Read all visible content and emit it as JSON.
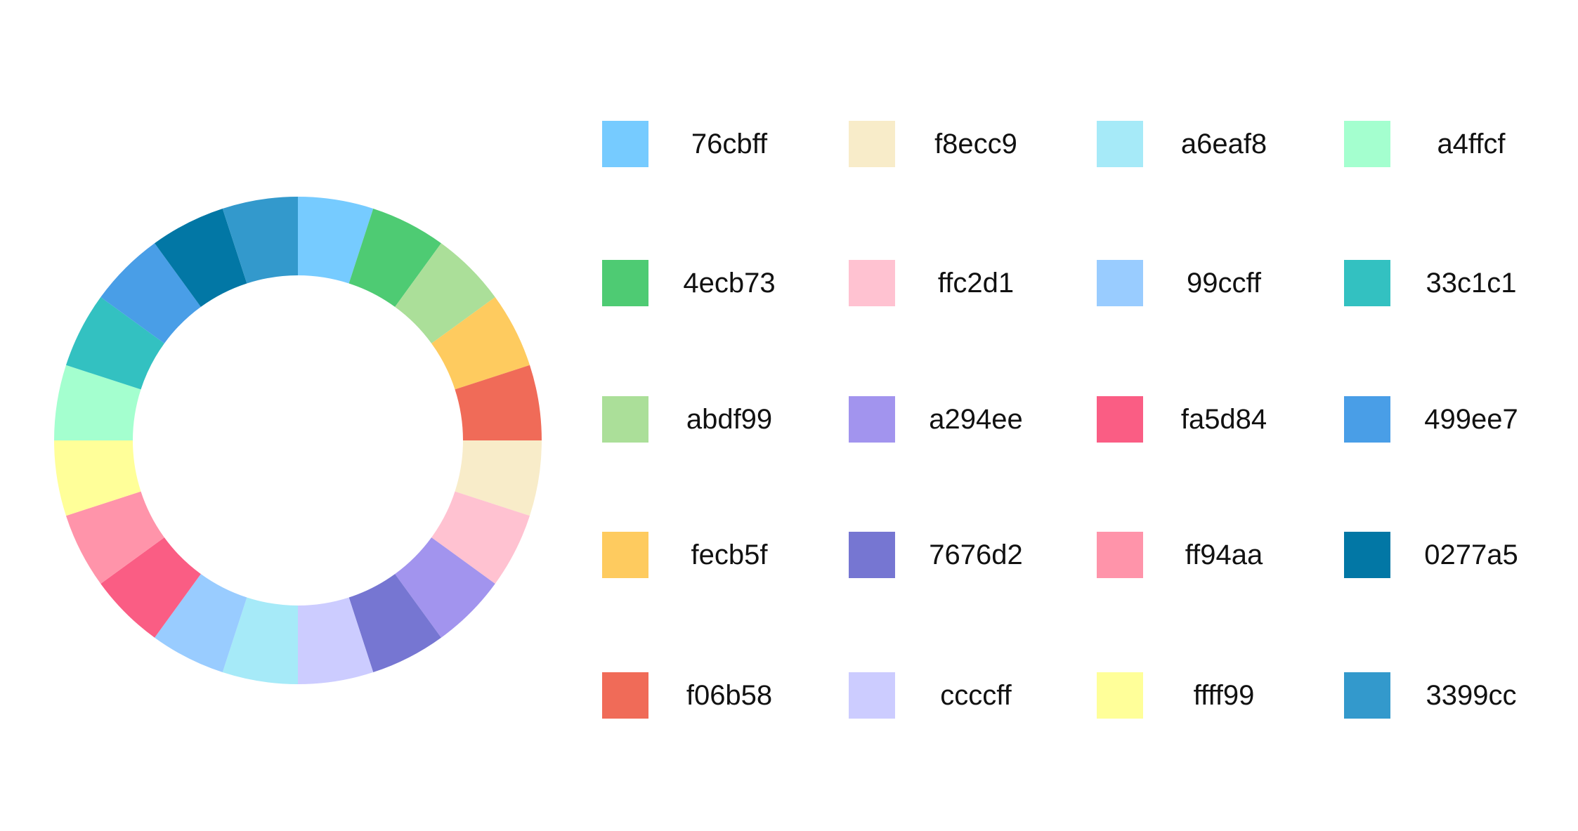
{
  "chart_data": {
    "type": "pie",
    "donut": true,
    "title": "",
    "legend_position": "right",
    "slices": [
      {
        "label": "76cbff",
        "value": 1,
        "color": "#76cbff"
      },
      {
        "label": "4ecb73",
        "value": 1,
        "color": "#4ecb73"
      },
      {
        "label": "abdf99",
        "value": 1,
        "color": "#abdf99"
      },
      {
        "label": "fecb5f",
        "value": 1,
        "color": "#fecb5f"
      },
      {
        "label": "f06b58",
        "value": 1,
        "color": "#f06b58"
      },
      {
        "label": "f8ecc9",
        "value": 1,
        "color": "#f8ecc9"
      },
      {
        "label": "ffc2d1",
        "value": 1,
        "color": "#ffc2d1"
      },
      {
        "label": "a294ee",
        "value": 1,
        "color": "#a294ee"
      },
      {
        "label": "7676d2",
        "value": 1,
        "color": "#7676d2"
      },
      {
        "label": "ccccff",
        "value": 1,
        "color": "#ccccff"
      },
      {
        "label": "a6eaf8",
        "value": 1,
        "color": "#a6eaf8"
      },
      {
        "label": "99ccff",
        "value": 1,
        "color": "#99ccff"
      },
      {
        "label": "fa5d84",
        "value": 1,
        "color": "#fa5d84"
      },
      {
        "label": "ff94aa",
        "value": 1,
        "color": "#ff94aa"
      },
      {
        "label": "ffff99",
        "value": 1,
        "color": "#ffff99"
      },
      {
        "label": "a4ffcf",
        "value": 1,
        "color": "#a4ffcf"
      },
      {
        "label": "33c1c1",
        "value": 1,
        "color": "#33c1c1"
      },
      {
        "label": "499ee7",
        "value": 1,
        "color": "#499ee7"
      },
      {
        "label": "0277a5",
        "value": 1,
        "color": "#0277a5"
      },
      {
        "label": "3399cc",
        "value": 1,
        "color": "#3399cc"
      }
    ]
  }
}
